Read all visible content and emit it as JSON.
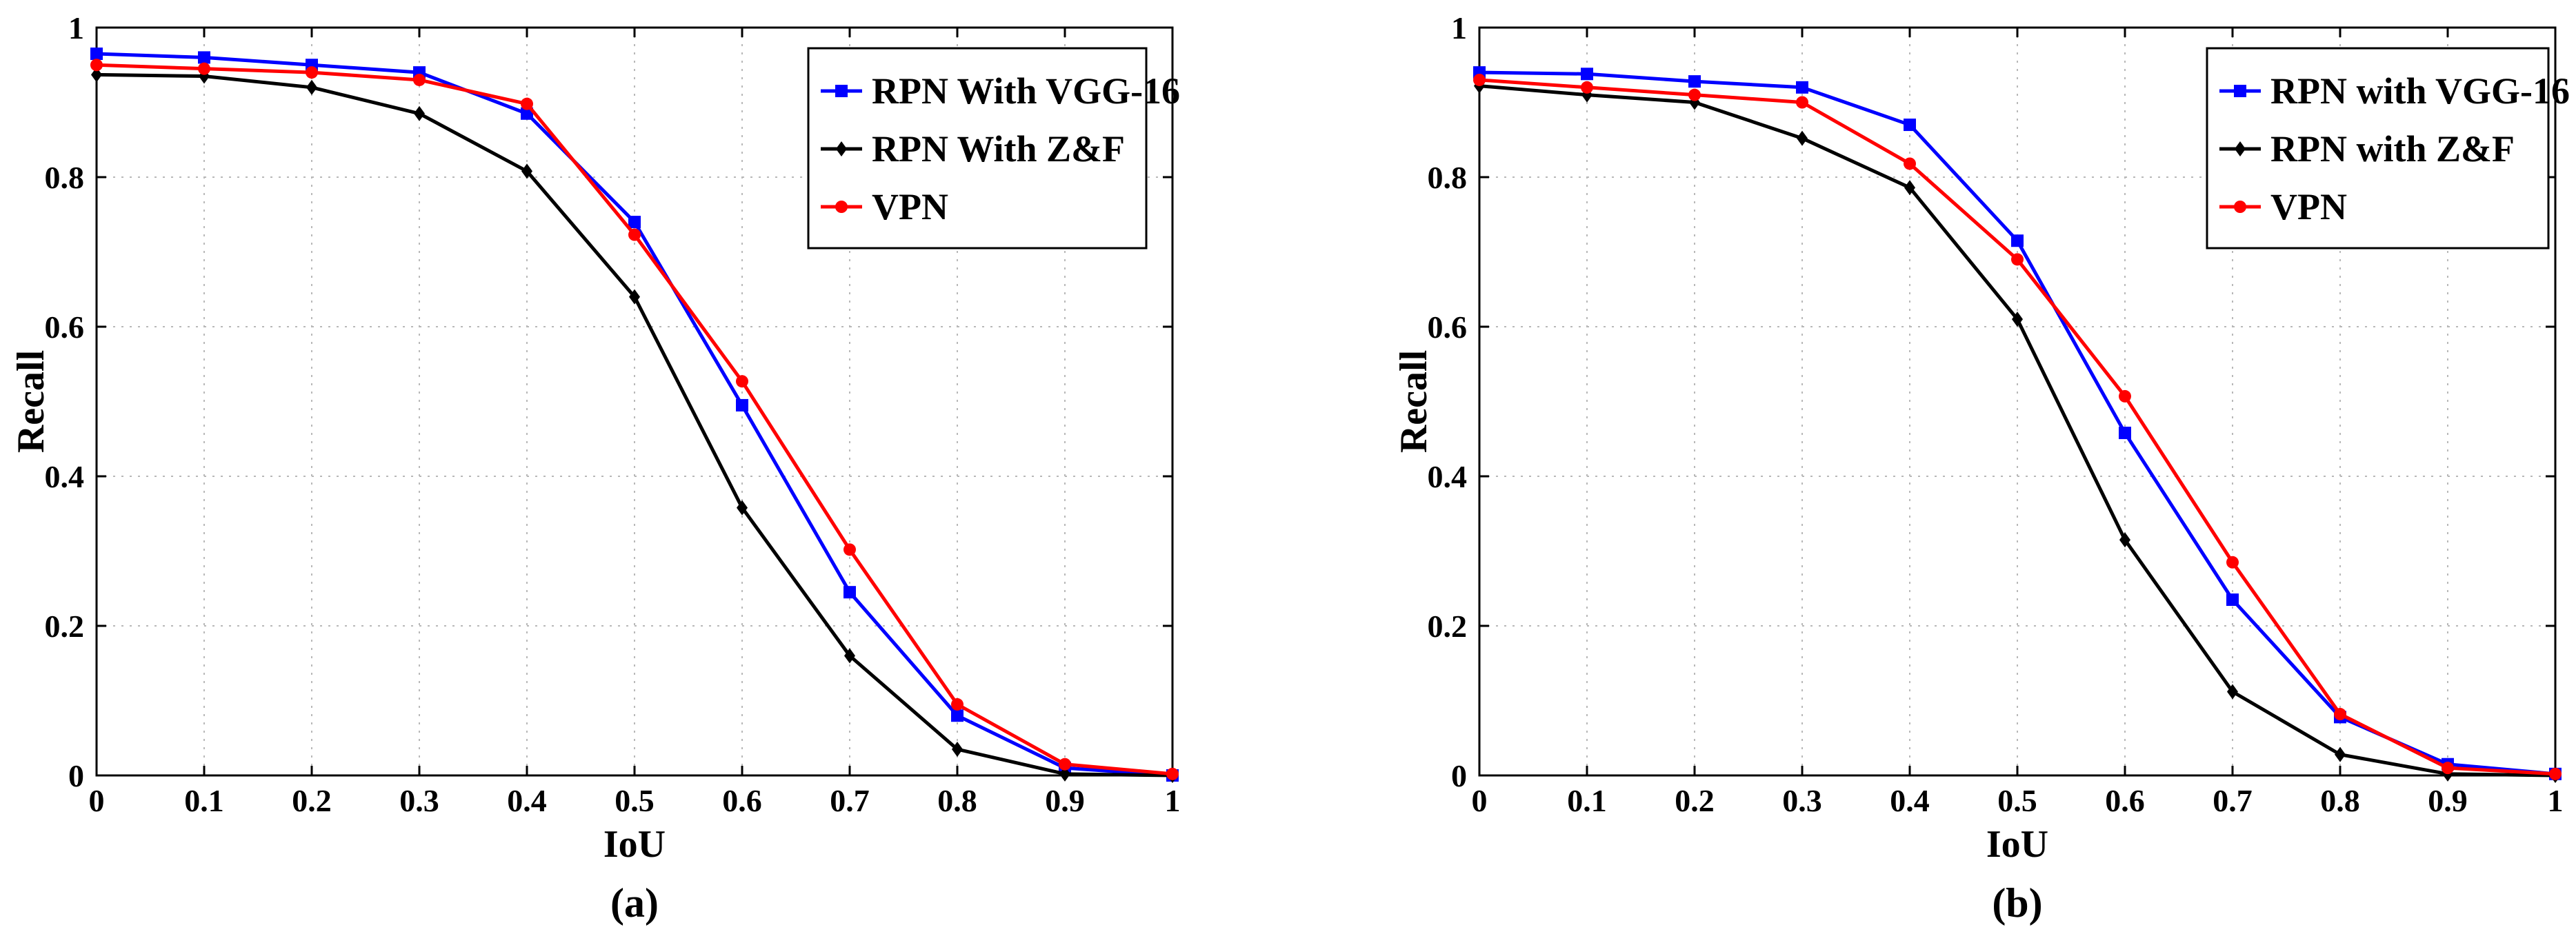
{
  "chart_data": [
    {
      "type": "line",
      "panel_label": "(a)",
      "xlabel": "IoU",
      "ylabel": "Recall",
      "xlim": [
        0,
        1
      ],
      "ylim": [
        0,
        1
      ],
      "xticks": [
        "0",
        "0.1",
        "0.2",
        "0.3",
        "0.4",
        "0.5",
        "0.6",
        "0.7",
        "0.8",
        "0.9",
        "1"
      ],
      "yticks": [
        "0",
        "0.2",
        "0.4",
        "0.6",
        "0.8",
        "1"
      ],
      "grid": true,
      "legend_position": "top-right",
      "x": [
        0,
        0.1,
        0.2,
        0.3,
        0.4,
        0.5,
        0.6,
        0.7,
        0.8,
        0.9,
        1.0
      ],
      "series": [
        {
          "name": "RPN With VGG-16",
          "color": "#0000ff",
          "marker": "square",
          "values": [
            0.965,
            0.96,
            0.95,
            0.94,
            0.885,
            0.74,
            0.495,
            0.245,
            0.08,
            0.01,
            0.0
          ]
        },
        {
          "name": "RPN With Z&F",
          "color": "#000000",
          "marker": "diamond",
          "values": [
            0.937,
            0.935,
            0.92,
            0.885,
            0.808,
            0.64,
            0.358,
            0.16,
            0.035,
            0.002,
            0.0
          ]
        },
        {
          "name": "VPN",
          "color": "#ff0000",
          "marker": "circle",
          "values": [
            0.95,
            0.945,
            0.94,
            0.93,
            0.898,
            0.723,
            0.527,
            0.302,
            0.095,
            0.015,
            0.002
          ]
        }
      ]
    },
    {
      "type": "line",
      "panel_label": "(b)",
      "xlabel": "IoU",
      "ylabel": "Recall",
      "xlim": [
        0,
        1
      ],
      "ylim": [
        0,
        1
      ],
      "xticks": [
        "0",
        "0.1",
        "0.2",
        "0.3",
        "0.4",
        "0.5",
        "0.6",
        "0.7",
        "0.8",
        "0.9",
        "1"
      ],
      "yticks": [
        "0",
        "0.2",
        "0.4",
        "0.6",
        "0.8",
        "1"
      ],
      "grid": true,
      "legend_position": "top-right",
      "x": [
        0,
        0.1,
        0.2,
        0.3,
        0.4,
        0.5,
        0.6,
        0.7,
        0.8,
        0.9,
        1.0
      ],
      "series": [
        {
          "name": "RPN with VGG-16",
          "color": "#0000ff",
          "marker": "square",
          "values": [
            0.94,
            0.938,
            0.928,
            0.92,
            0.87,
            0.715,
            0.458,
            0.235,
            0.078,
            0.015,
            0.002
          ]
        },
        {
          "name": "RPN with Z&F",
          "color": "#000000",
          "marker": "diamond",
          "values": [
            0.922,
            0.91,
            0.9,
            0.852,
            0.786,
            0.61,
            0.315,
            0.112,
            0.028,
            0.002,
            0.0
          ]
        },
        {
          "name": "VPN",
          "color": "#ff0000",
          "marker": "circle",
          "values": [
            0.93,
            0.92,
            0.91,
            0.9,
            0.818,
            0.69,
            0.507,
            0.285,
            0.082,
            0.01,
            0.002
          ]
        }
      ]
    }
  ]
}
